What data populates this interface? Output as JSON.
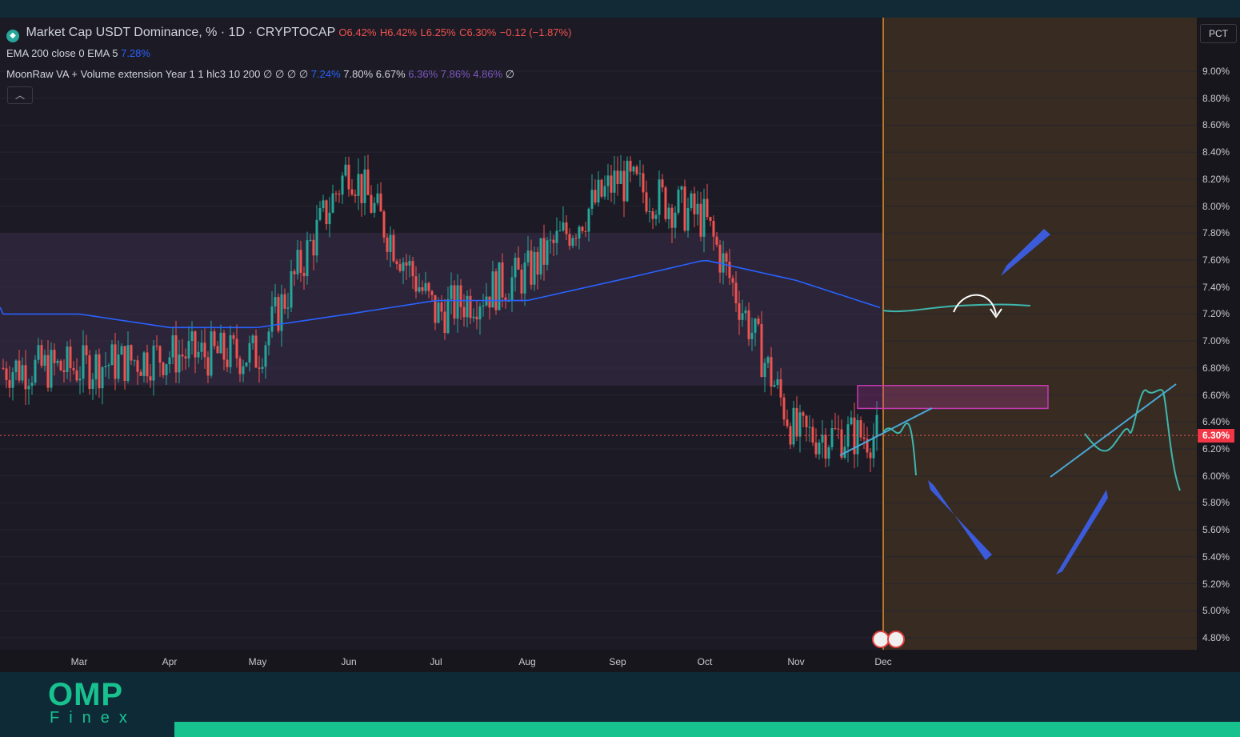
{
  "header": {
    "symbol_icon": "tether-gem-icon",
    "title": "Market Cap USDT Dominance, % · 1D · CRYPTOCAP",
    "ohlc": {
      "open": "O6.42%",
      "high": "H6.42%",
      "low": "L6.25%",
      "close": "C6.30%",
      "change": "−0.12 (−1.87%)"
    },
    "indicator1": {
      "name": "EMA 200 close 0 EMA 5",
      "value": "7.28%"
    },
    "indicator2": {
      "name": "MoonRaw VA + Volume extension Year 1 1 hlc3 10 200",
      "flags": "∅ ∅ ∅ ∅",
      "v1": "7.24%",
      "v2": "7.80%",
      "v3": "6.67%",
      "v4": "6.36%",
      "v5": "7.86%",
      "v6": "4.86%",
      "end": "∅"
    },
    "collapse_icon": "chevron-up-icon",
    "scale_mode": "PCT"
  },
  "colors": {
    "up": "#26a69a",
    "down": "#ef5350",
    "ema": "#2962ff",
    "forecast_bg": "#382c22",
    "annotation": "#3b5bdb",
    "drawing": "#3fb6ad",
    "zone": "#c43bb0"
  },
  "chart_data": {
    "type": "candlestick",
    "title": "Market Cap USDT Dominance, % · 1D · CRYPTOCAP",
    "y_unit": "%",
    "ylim": [
      4.8,
      9.0
    ],
    "y_ticks": [
      "9.00%",
      "8.80%",
      "8.60%",
      "8.40%",
      "8.20%",
      "8.00%",
      "7.80%",
      "7.60%",
      "7.40%",
      "7.20%",
      "7.00%",
      "6.80%",
      "6.60%",
      "6.40%",
      "6.20%",
      "6.00%",
      "5.80%",
      "5.60%",
      "5.40%",
      "5.20%",
      "5.00%",
      "4.80%"
    ],
    "x_ticks": [
      "Mar",
      "Apr",
      "May",
      "Jun",
      "Jul",
      "Aug",
      "Sep",
      "Oct",
      "Nov",
      "Dec"
    ],
    "last_price": 6.3,
    "last_price_label": "6.30%",
    "monthly_price_path": [
      {
        "month": "Mar",
        "value": 6.8
      },
      {
        "month": "Apr",
        "value": 6.9
      },
      {
        "month": "May",
        "value": 6.9
      },
      {
        "month": "Jun",
        "value": 8.3
      },
      {
        "month": "Jul",
        "value": 7.2
      },
      {
        "month": "Aug",
        "value": 7.5
      },
      {
        "month": "Sep",
        "value": 8.2
      },
      {
        "month": "Oct",
        "value": 7.9
      },
      {
        "month": "Nov",
        "value": 6.3
      },
      {
        "month": "Dec",
        "value": 6.3
      }
    ],
    "ema200_path": [
      {
        "month": "Mar",
        "value": 7.2
      },
      {
        "month": "Apr",
        "value": 7.1
      },
      {
        "month": "May",
        "value": 7.1
      },
      {
        "month": "Jun",
        "value": 7.2
      },
      {
        "month": "Jul",
        "value": 7.3
      },
      {
        "month": "Aug",
        "value": 7.3
      },
      {
        "month": "Sep",
        "value": 7.45
      },
      {
        "month": "Oct",
        "value": 7.6
      },
      {
        "month": "Nov",
        "value": 7.45
      },
      {
        "month": "Dec",
        "value": 7.24
      }
    ],
    "value_area": {
      "high": 7.8,
      "low": 6.67
    },
    "supply_zone": {
      "low": 6.5,
      "high": 6.67
    },
    "forecast_target": 6.0,
    "grid": true,
    "legend": "top-left"
  }
}
